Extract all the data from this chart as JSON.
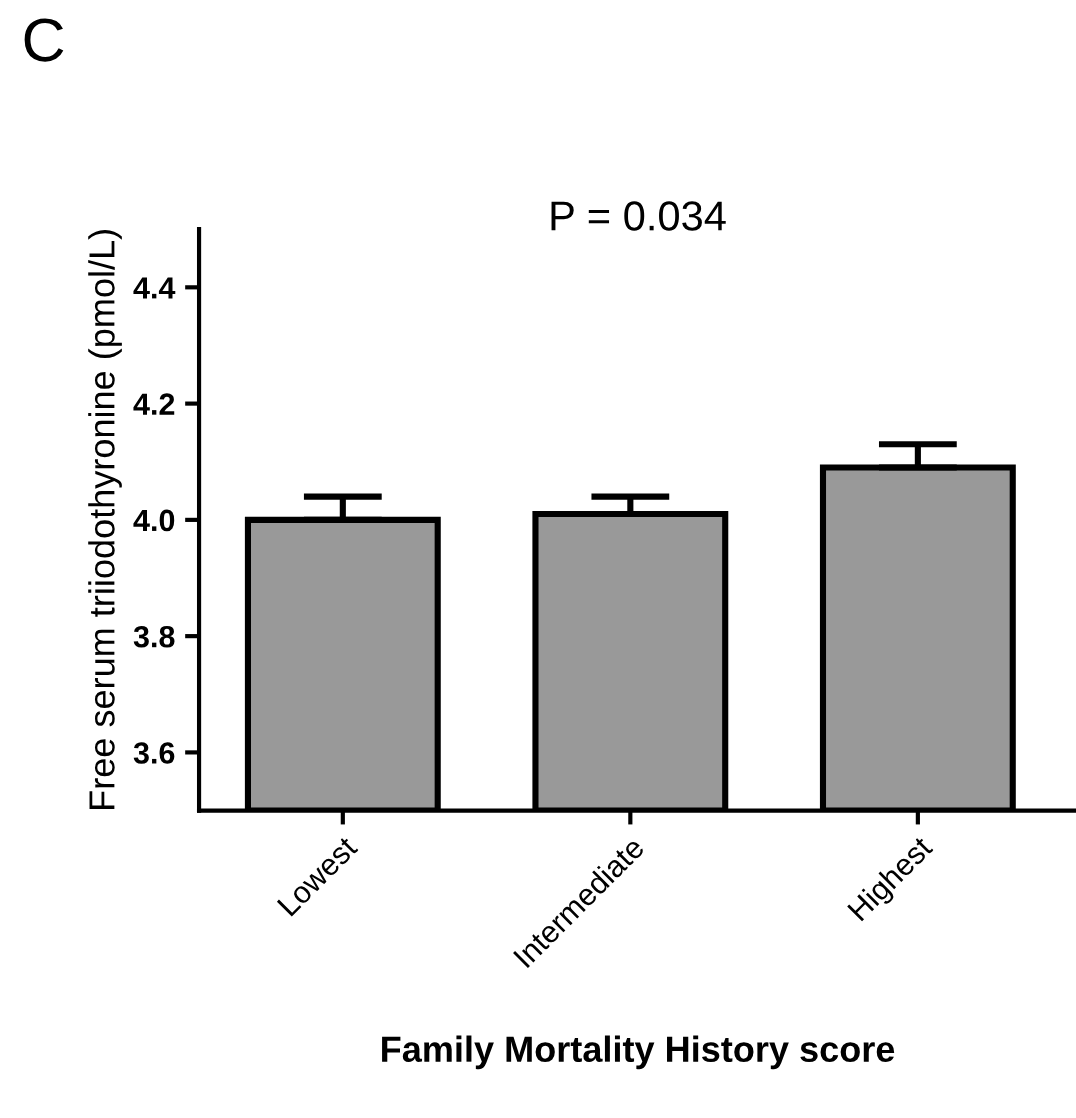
{
  "chart_data": {
    "type": "bar",
    "categories": [
      "Lowest",
      "Intermediate",
      "Highest"
    ],
    "values": [
      4.0,
      4.01,
      4.09
    ],
    "errors": [
      [
        4.0,
        4.04
      ],
      [
        4.01,
        4.04
      ],
      [
        4.09,
        4.13
      ]
    ],
    "color": "#999999",
    "xlabel": "Family Mortality History score",
    "ylabel": "Free serum triiodothyronine (pmol/L)",
    "ylim": [
      3.5,
      4.5
    ],
    "yticks": [
      3.6,
      3.8,
      {
        "value": 4.0,
        "label": "4.0"
      },
      4.2,
      4.4
    ],
    "grid": false,
    "annotations": [
      "C",
      "P = 0.034"
    ]
  }
}
